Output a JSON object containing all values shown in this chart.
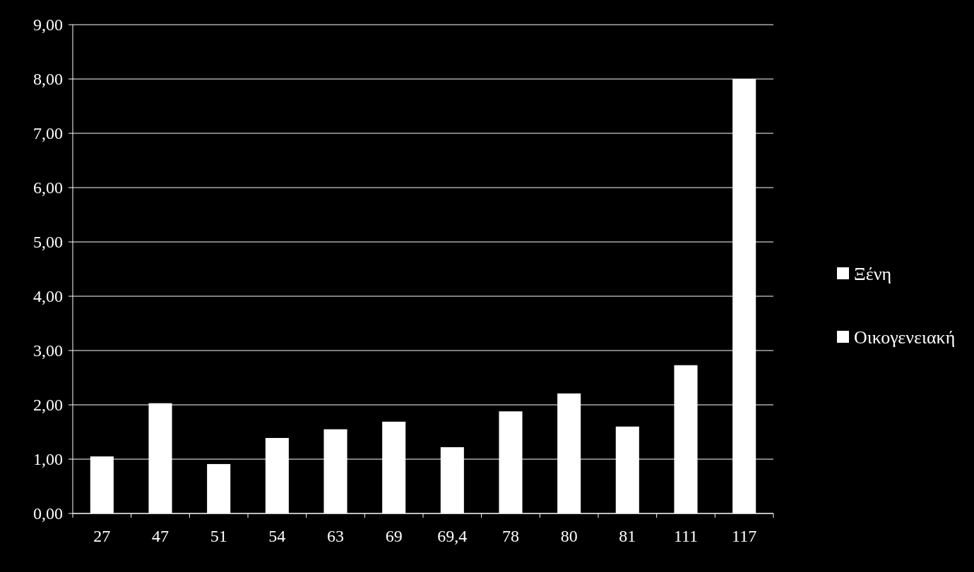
{
  "chart_data": {
    "type": "bar",
    "stacked": true,
    "categories": [
      "27",
      "47",
      "51",
      "54",
      "63",
      "69",
      "69,4",
      "78",
      "80",
      "81",
      "111",
      "117"
    ],
    "series": [
      {
        "name": "Ξένη",
        "color": "#ffffff",
        "values": [
          1.05,
          2.03,
          0.91,
          1.39,
          1.55,
          1.69,
          1.22,
          1.88,
          2.21,
          1.6,
          2.73,
          8.0
        ]
      },
      {
        "name": "Οικογενειακή",
        "color": "#ffffff",
        "values": [
          null,
          null,
          null,
          null,
          null,
          null,
          null,
          null,
          null,
          null,
          null,
          null
        ]
      }
    ],
    "ylim": [
      0,
      9
    ],
    "yticks": [
      {
        "value": 0,
        "label": "0,00"
      },
      {
        "value": 1,
        "label": "1,00"
      },
      {
        "value": 2,
        "label": "2,00"
      },
      {
        "value": 3,
        "label": "3,00"
      },
      {
        "value": 4,
        "label": "4,00"
      },
      {
        "value": 5,
        "label": "5,00"
      },
      {
        "value": 6,
        "label": "6,00"
      },
      {
        "value": 7,
        "label": "7,00"
      },
      {
        "value": 8,
        "label": "8,00"
      },
      {
        "value": 9,
        "label": "9,00"
      }
    ],
    "grid": "y",
    "legend": "right"
  }
}
